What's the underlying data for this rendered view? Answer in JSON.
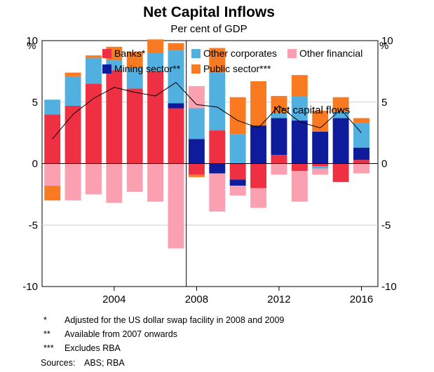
{
  "chart_data": {
    "type": "bar",
    "stacked": true,
    "title": "Net Capital Inflows",
    "subtitle": "Per cent of GDP",
    "ylabel_left": "%",
    "ylabel_right": "%",
    "ylim": [
      -10,
      10
    ],
    "y_ticks": [
      10,
      5,
      0,
      -5,
      -10
    ],
    "y_tick_labels": [
      "10",
      "5",
      "0",
      "-5",
      "-10"
    ],
    "x_ticks": [
      2004,
      2008,
      2012,
      2016
    ],
    "x_tick_labels": [
      "2004",
      "2008",
      "2012",
      "2016"
    ],
    "x_range": [
      2000.5,
      2016.8
    ],
    "break_year": 2007.5,
    "categories": [
      2001,
      2002,
      2003,
      2004,
      2005,
      2006,
      2007,
      2008,
      2009,
      2010,
      2011,
      2012,
      2013,
      2014,
      2015,
      2016
    ],
    "series": [
      {
        "name": "Banks*",
        "color": "#ee3042",
        "values": [
          4.0,
          4.7,
          6.5,
          7.6,
          6.1,
          7.5,
          4.5,
          -0.9,
          2.7,
          -1.3,
          -2.0,
          0.7,
          -0.6,
          -0.2,
          -1.5,
          0.3
        ]
      },
      {
        "name": "Mining sector**",
        "color": "#0e1c9c",
        "values": [
          0,
          0,
          0,
          0,
          0,
          0,
          0.4,
          2.0,
          -0.8,
          -0.5,
          3.1,
          3.0,
          3.5,
          2.6,
          3.7,
          1.0
        ]
      },
      {
        "name": "Other corporates",
        "color": "#52b0e0",
        "values": [
          1.2,
          2.4,
          2.1,
          0.8,
          1.7,
          1.5,
          4.3,
          2.5,
          4.7,
          2.4,
          0,
          0.4,
          2.0,
          -0.2,
          0.5,
          2.0
        ]
      },
      {
        "name": "Other financial",
        "color": "#fba0b0",
        "values": [
          -1.8,
          -3.0,
          -2.5,
          -3.2,
          -2.3,
          -3.1,
          -6.9,
          1.8,
          -3.1,
          -0.8,
          -1.6,
          -0.9,
          -2.5,
          -0.5,
          0,
          -0.8
        ]
      },
      {
        "name": "Public sector***",
        "color": "#f97a21",
        "values": [
          -1.2,
          0.3,
          0.2,
          1.1,
          1.3,
          1.1,
          0.6,
          -0.2,
          2.0,
          3.0,
          3.6,
          1.4,
          1.7,
          1.7,
          1.2,
          0.4
        ]
      }
    ],
    "line_series": {
      "name": "Net capital flows",
      "color": "#000000",
      "x": [
        2001,
        2002,
        2003,
        2004,
        2005,
        2006,
        2007,
        2008,
        2009,
        2010,
        2011,
        2012,
        2013,
        2014,
        2015,
        2016
      ],
      "values": [
        2.0,
        4.0,
        5.3,
        6.2,
        5.8,
        5.5,
        6.6,
        4.8,
        4.6,
        3.5,
        2.9,
        4.7,
        3.4,
        2.9,
        4.4,
        2.5
      ]
    },
    "legend": [
      "Banks*",
      "Other corporates",
      "Other financial",
      "Mining sector**",
      "Public sector***"
    ],
    "annotation": "Net capital flows",
    "legend_position": "top"
  },
  "footnotes": [
    {
      "mark": "*",
      "text": "Adjusted for the US dollar swap facility in 2008 and 2009"
    },
    {
      "mark": "**",
      "text": "Available from 2007 onwards"
    },
    {
      "mark": "***",
      "text": "Excludes RBA"
    }
  ],
  "sources": {
    "label": "Sources:",
    "text": "ABS; RBA"
  }
}
